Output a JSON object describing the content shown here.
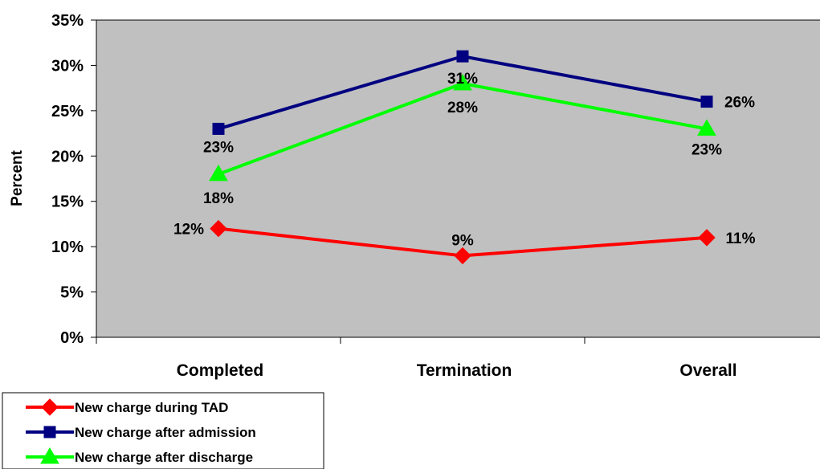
{
  "chart_data": {
    "type": "line",
    "categories": [
      "Completed",
      "Termination",
      "Overall"
    ],
    "ylabel": "Percent",
    "ylim": [
      0,
      35
    ],
    "y_ticks": [
      "0%",
      "5%",
      "10%",
      "15%",
      "20%",
      "25%",
      "30%",
      "35%"
    ],
    "y_tick_values": [
      0,
      5,
      10,
      15,
      20,
      25,
      30,
      35
    ],
    "grid": false,
    "plot_background": "#c0c0c0",
    "legend_position": "bottom-left",
    "series": [
      {
        "name": "New charge during TAD",
        "values": [
          12,
          9,
          11
        ],
        "data_labels": [
          "12%",
          "9%",
          "11%"
        ],
        "color": "#ff0000",
        "marker": "diamond"
      },
      {
        "name": "New charge after admission",
        "values": [
          23,
          31,
          26
        ],
        "data_labels": [
          "23%",
          "31%",
          "26%"
        ],
        "color": "#000080",
        "marker": "square"
      },
      {
        "name": "New charge after discharge",
        "values": [
          18,
          28,
          23
        ],
        "data_labels": [
          "18%",
          "28%",
          "23%"
        ],
        "color": "#00ff00",
        "marker": "triangle"
      }
    ]
  }
}
